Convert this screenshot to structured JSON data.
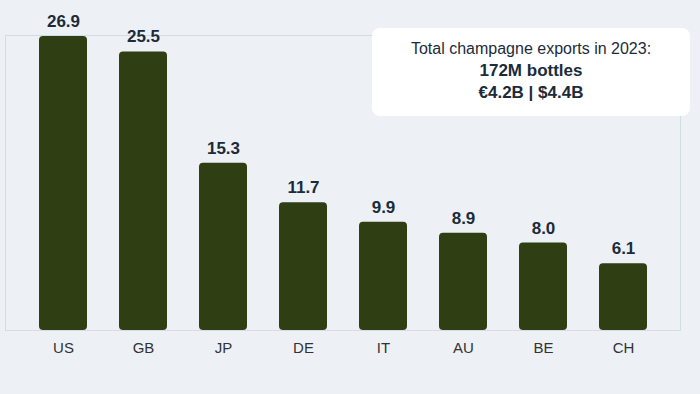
{
  "chart_data": {
    "type": "bar",
    "categories": [
      "US",
      "GB",
      "JP",
      "DE",
      "IT",
      "AU",
      "BE",
      "CH"
    ],
    "values": [
      26.9,
      25.5,
      15.3,
      11.7,
      9.9,
      8.9,
      8.0,
      6.1
    ],
    "value_labels": [
      "26.9",
      "25.5",
      "15.3",
      "11.7",
      "9.9",
      "8.9",
      "8.0",
      "6.1"
    ],
    "color": "#303e14",
    "ylim": [
      0,
      27
    ],
    "yticks": [],
    "data_labels": true,
    "tick_labels": "x",
    "grid": false,
    "annotations": [
      "Total champagne exports in 2023:",
      "172M bottles",
      "€4.2B | $4.4B"
    ]
  }
}
